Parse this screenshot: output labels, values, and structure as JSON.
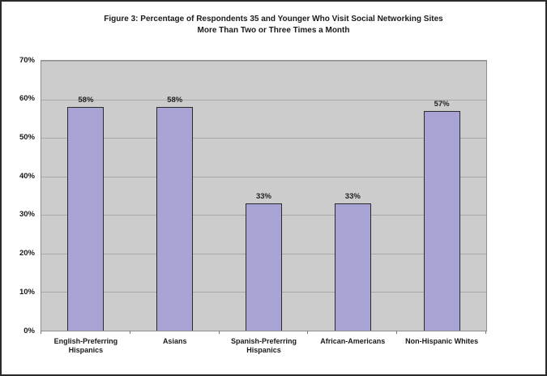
{
  "figure": {
    "title_line1": "Figure 3: Percentage of Respondents 35 and Younger Who Visit Social Networking Sites",
    "title_line2": "More Than Two or Three Times a Month"
  },
  "chart_data": {
    "type": "bar",
    "title": "Figure 3: Percentage of Respondents 35 and Younger Who Visit Social Networking Sites More Than Two or Three Times a Month",
    "categories": [
      "English-Preferring Hispanics",
      "Asians",
      "Spanish-Preferring Hispanics",
      "African-Americans",
      "Non-Hispanic Whites"
    ],
    "values": [
      58,
      58,
      33,
      33,
      57
    ],
    "value_labels": [
      "58%",
      "58%",
      "33%",
      "33%",
      "57%"
    ],
    "y_tick_labels": [
      "0%",
      "10%",
      "20%",
      "30%",
      "40%",
      "50%",
      "60%",
      "70%"
    ],
    "ylim": [
      0,
      70
    ],
    "y_step": 10,
    "grid": true,
    "legend": "none",
    "xlabel": "",
    "ylabel": "",
    "colors": {
      "bar_fill": "#a7a4d5",
      "bar_border": "#2a2a2a",
      "plot_background": "#cccccc",
      "gridline": "#a8a8a8",
      "figure_border": "#2b2b2b",
      "text": "#1a1a1a"
    }
  }
}
